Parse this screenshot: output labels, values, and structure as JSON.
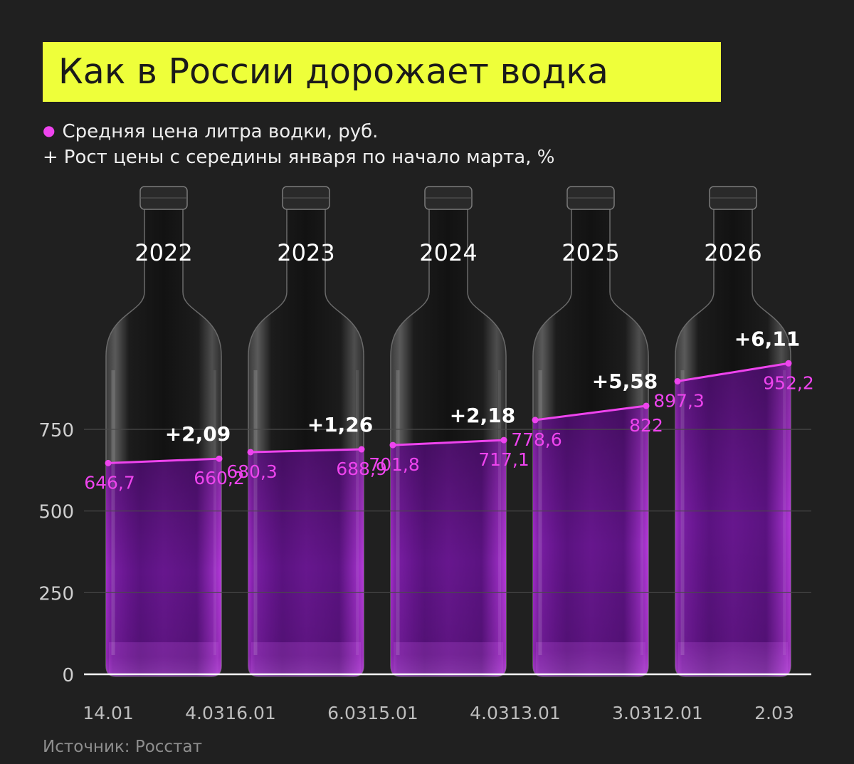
{
  "title": "Как в России дорожает водка",
  "legend": {
    "price": "Средняя цена литра водки, руб.",
    "growth_marker": "+",
    "growth": "Рост цены с середины января по начало марта, %"
  },
  "source": "Источник: Росстат",
  "colors": {
    "background": "#202020",
    "title_bg": "#eeff3a",
    "accent": "#ee44ee",
    "liquid": "#8a22b2",
    "grid": "#4a4a4a"
  },
  "chart_data": {
    "type": "line",
    "ylim": [
      0,
      1000
    ],
    "yticks": [
      0,
      250,
      500,
      750
    ],
    "grid": true,
    "years": [
      {
        "year": "2022",
        "dates": [
          "14.01",
          "4.03"
        ],
        "labels": [
          "646,7",
          "660,2"
        ],
        "values": [
          646.7,
          660.2
        ],
        "growth": "+2,09"
      },
      {
        "year": "2023",
        "dates": [
          "16.01",
          "6.03"
        ],
        "labels": [
          "680,3",
          "688,9"
        ],
        "values": [
          680.3,
          688.9
        ],
        "growth": "+1,26"
      },
      {
        "year": "2024",
        "dates": [
          "15.01",
          "4.03"
        ],
        "labels": [
          "701,8",
          "717,1"
        ],
        "values": [
          701.8,
          717.1
        ],
        "growth": "+2,18"
      },
      {
        "year": "2025",
        "dates": [
          "13.01",
          "3.03"
        ],
        "labels": [
          "778,6",
          "822"
        ],
        "values": [
          778.6,
          822
        ],
        "growth": "+5,58"
      },
      {
        "year": "2026",
        "dates": [
          "12.01",
          "2.03"
        ],
        "labels": [
          "897,3",
          "952,2"
        ],
        "values": [
          897.3,
          952.2
        ],
        "growth": "+6,11"
      }
    ]
  }
}
